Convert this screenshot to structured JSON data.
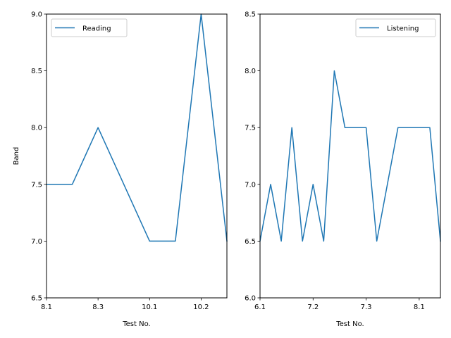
{
  "chart_data": [
    {
      "type": "line",
      "ylabel": "Band",
      "xlabel": "Test No.",
      "x_ticks": [
        "8.1",
        "8.3",
        "10.1",
        "10.2"
      ],
      "x_tick_index": [
        0,
        2,
        4,
        6
      ],
      "ylim": [
        6.5,
        9.0
      ],
      "y_ticks": [
        6.5,
        7.0,
        7.5,
        8.0,
        8.5,
        9.0
      ],
      "legend": "upper left",
      "series": [
        {
          "name": "Reading",
          "color": "#1f77b4",
          "values": [
            7.5,
            7.5,
            8.0,
            7.5,
            7.0,
            7.0,
            9.0,
            7.0
          ]
        }
      ]
    },
    {
      "type": "line",
      "ylabel": "",
      "xlabel": "Test No.",
      "x_ticks": [
        "6.1",
        "7.2",
        "7.3",
        "8.1"
      ],
      "x_tick_index": [
        0,
        5,
        10,
        15
      ],
      "ylim": [
        6.0,
        8.5
      ],
      "y_ticks": [
        6.0,
        6.5,
        7.0,
        7.5,
        8.0,
        8.5
      ],
      "legend": "upper right",
      "series": [
        {
          "name": "Listening",
          "color": "#1f77b4",
          "values": [
            6.5,
            7.0,
            6.5,
            7.5,
            6.5,
            7.0,
            6.5,
            8.0,
            7.5,
            7.5,
            7.5,
            6.5,
            7.0,
            7.5,
            7.5,
            7.5,
            7.5,
            6.5
          ]
        }
      ]
    }
  ]
}
